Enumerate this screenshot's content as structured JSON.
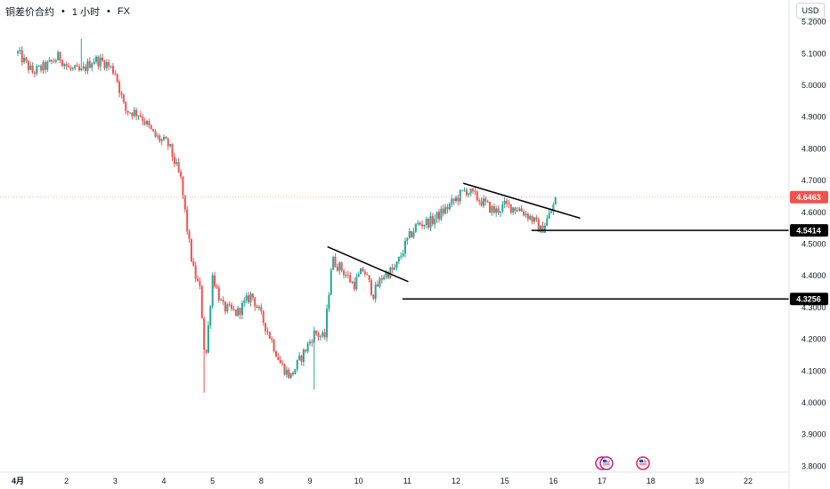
{
  "header": {
    "symbol": "铜差价合约",
    "interval": "1 小时",
    "exchange": "FX",
    "separator": "•",
    "currency_button": "USD"
  },
  "colors": {
    "up": "#26a69a",
    "down": "#ef5350",
    "line": "#000000",
    "axis_text": "#131722",
    "last_price_label": "#ef5350",
    "level_label": "#000000"
  },
  "chart_data": {
    "type": "candlestick",
    "title": "",
    "xlabel": "",
    "ylabel": "",
    "ylim": [
      3.78,
      5.245
    ],
    "grid": false,
    "y_ticks": [
      "5.2000",
      "5.1000",
      "5.0000",
      "4.9000",
      "4.8000",
      "4.7000",
      "4.6000",
      "4.5000",
      "4.4000",
      "4.3000",
      "4.2000",
      "4.1000",
      "4.0000",
      "3.9000",
      "3.8000"
    ],
    "x_ticks": [
      {
        "label": "4月",
        "day": 1,
        "bold": true
      },
      {
        "label": "2",
        "day": 2
      },
      {
        "label": "3",
        "day": 3
      },
      {
        "label": "4",
        "day": 4
      },
      {
        "label": "5",
        "day": 5
      },
      {
        "label": "8",
        "day": 6
      },
      {
        "label": "9",
        "day": 7
      },
      {
        "label": "10",
        "day": 8
      },
      {
        "label": "11",
        "day": 9
      },
      {
        "label": "12",
        "day": 10
      },
      {
        "label": "15",
        "day": 11
      },
      {
        "label": "16",
        "day": 12
      },
      {
        "label": "17",
        "day": 13
      },
      {
        "label": "18",
        "day": 14
      },
      {
        "label": "19",
        "day": 15
      },
      {
        "label": "22",
        "day": 16
      }
    ],
    "anchors": [
      [
        1.0,
        5.1
      ],
      [
        1.3,
        5.04
      ],
      [
        1.6,
        5.06
      ],
      [
        1.85,
        5.09
      ],
      [
        2.05,
        5.05
      ],
      [
        2.3,
        5.04
      ],
      [
        2.55,
        5.08
      ],
      [
        2.8,
        5.07
      ],
      [
        3.0,
        5.04
      ],
      [
        3.2,
        4.92
      ],
      [
        3.5,
        4.91
      ],
      [
        3.8,
        4.84
      ],
      [
        4.1,
        4.81
      ],
      [
        4.35,
        4.7
      ],
      [
        4.5,
        4.52
      ],
      [
        4.6,
        4.42
      ],
      [
        4.75,
        4.35
      ],
      [
        4.85,
        4.12
      ],
      [
        5.0,
        4.4
      ],
      [
        5.2,
        4.3
      ],
      [
        5.5,
        4.28
      ],
      [
        5.8,
        4.34
      ],
      [
        6.0,
        4.27
      ],
      [
        6.2,
        4.2
      ],
      [
        6.4,
        4.12
      ],
      [
        6.6,
        4.08
      ],
      [
        6.85,
        4.15
      ],
      [
        7.1,
        4.22
      ],
      [
        7.3,
        4.2
      ],
      [
        7.45,
        4.45
      ],
      [
        7.65,
        4.42
      ],
      [
        7.9,
        4.37
      ],
      [
        8.1,
        4.42
      ],
      [
        8.3,
        4.34
      ],
      [
        8.5,
        4.4
      ],
      [
        8.75,
        4.42
      ],
      [
        9.0,
        4.51
      ],
      [
        9.2,
        4.56
      ],
      [
        9.5,
        4.57
      ],
      [
        9.8,
        4.61
      ],
      [
        10.0,
        4.64
      ],
      [
        10.2,
        4.67
      ],
      [
        10.55,
        4.63
      ],
      [
        10.8,
        4.6
      ],
      [
        11.0,
        4.62
      ],
      [
        11.3,
        4.61
      ],
      [
        11.55,
        4.58
      ],
      [
        11.75,
        4.54
      ],
      [
        11.95,
        4.6
      ],
      [
        12.05,
        4.64
      ]
    ],
    "extremes": [
      {
        "day": 2.3,
        "value": 5.145
      },
      {
        "day": 4.84,
        "value": 4.03
      },
      {
        "day": 7.1,
        "value": 4.04
      }
    ],
    "trendlines": [
      {
        "from": [
          7.36,
          4.49
        ],
        "to": [
          9.02,
          4.38
        ]
      },
      {
        "from": [
          10.15,
          4.69
        ],
        "to": [
          12.55,
          4.58
        ]
      }
    ],
    "levels": [
      {
        "value": 4.5414,
        "label": "4.5414",
        "from_day": 11.55
      },
      {
        "value": 4.3256,
        "label": "4.3256",
        "from_day": 8.9
      }
    ],
    "last_price": {
      "value": 4.6463,
      "label": "4.6463"
    }
  }
}
